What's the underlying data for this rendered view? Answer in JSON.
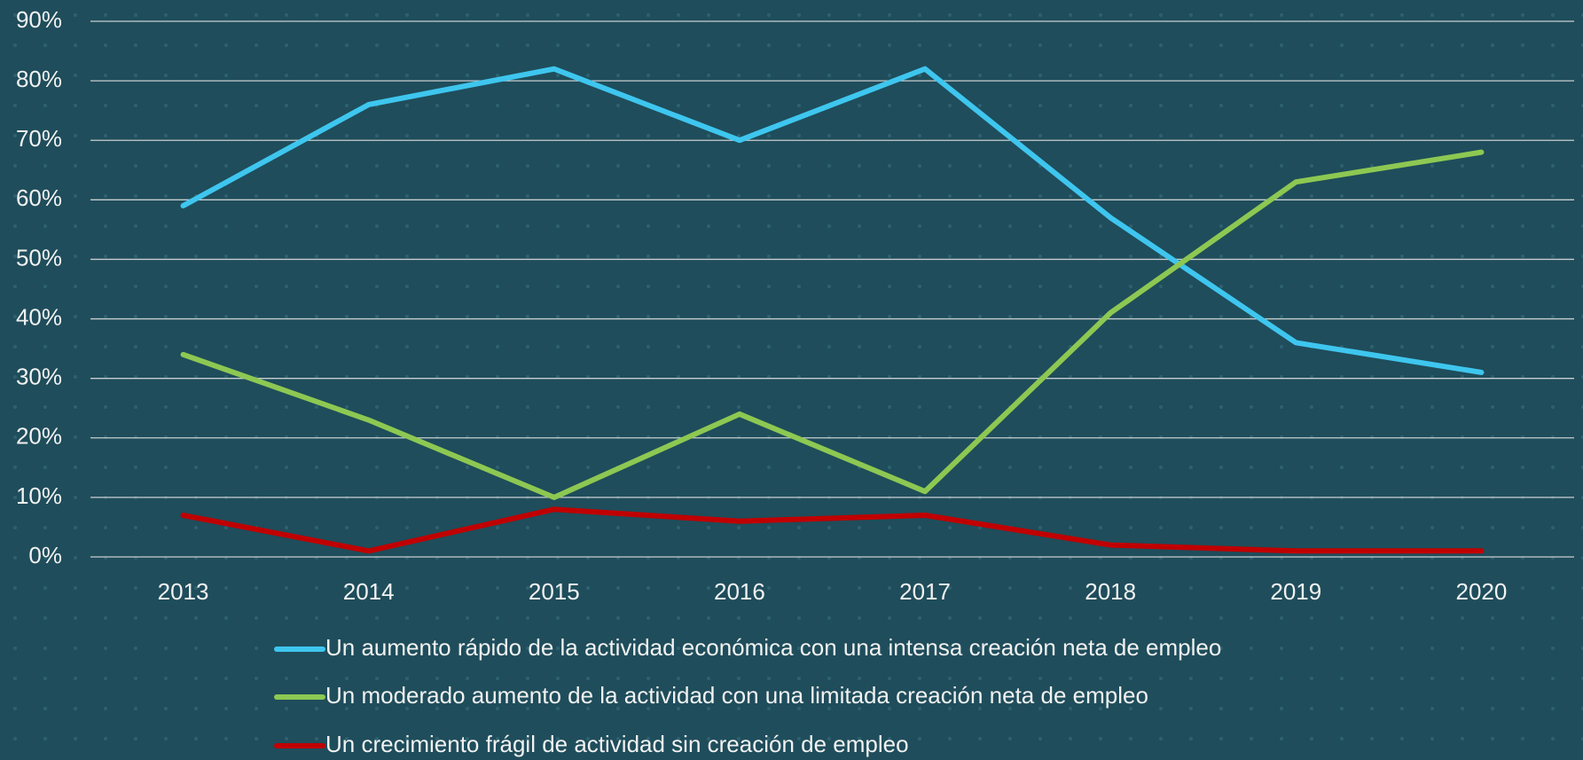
{
  "chart_data": {
    "type": "line",
    "categories": [
      "2013",
      "2014",
      "2015",
      "2016",
      "2017",
      "2018",
      "2019",
      "2020"
    ],
    "series": [
      {
        "name": "Un aumento rápido de la actividad económica con una intensa creación neta de empleo",
        "color": "#3ec6ef",
        "values": [
          59,
          76,
          82,
          70,
          82,
          57,
          36,
          31
        ]
      },
      {
        "name": "Un moderado aumento de la actividad con una limitada creación neta de empleo",
        "color": "#8dc852",
        "values": [
          34,
          23,
          10,
          24,
          11,
          41,
          63,
          68
        ]
      },
      {
        "name": "Un crecimiento frágil de actividad sin creación de empleo",
        "color": "#c00000",
        "values": [
          7,
          1,
          8,
          6,
          7,
          2,
          1,
          1
        ]
      }
    ],
    "ylim": [
      0,
      90
    ],
    "yticks": [
      {
        "value": 0,
        "label": "0%"
      },
      {
        "value": 10,
        "label": "10%"
      },
      {
        "value": 20,
        "label": "20%"
      },
      {
        "value": 30,
        "label": "30%"
      },
      {
        "value": 40,
        "label": "40%"
      },
      {
        "value": 50,
        "label": "50%"
      },
      {
        "value": 60,
        "label": "60%"
      },
      {
        "value": 70,
        "label": "70%"
      },
      {
        "value": 80,
        "label": "80%"
      },
      {
        "value": 90,
        "label": "90%"
      }
    ],
    "grid": true,
    "legend": "bottom"
  }
}
